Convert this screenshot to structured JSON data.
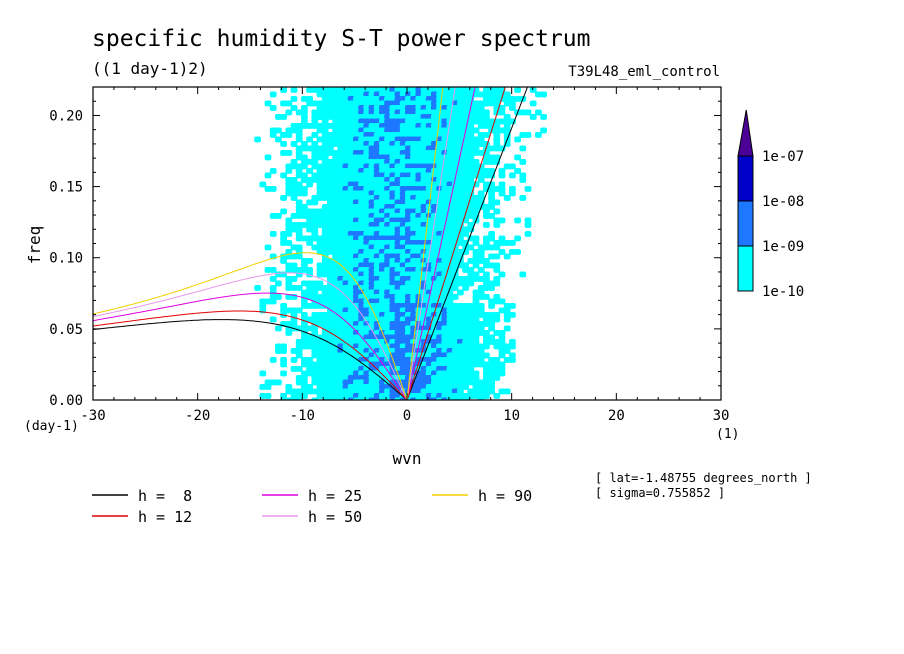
{
  "chart_data": {
    "type": "heatmap",
    "title": "specific humidity S-T power spectrum",
    "subtitle": "((1 day-1)2)",
    "run_label": "T39L48_eml_control",
    "xlabel": "wvn",
    "ylabel": "freq",
    "x_unit": "(1)",
    "y_unit": "(day-1)",
    "xlim": [
      -30,
      30
    ],
    "ylim": [
      0,
      0.22
    ],
    "x_ticks": [
      -30,
      -20,
      -10,
      0,
      10,
      20,
      30
    ],
    "y_ticks": [
      0.0,
      0.05,
      0.1,
      0.15,
      0.2
    ],
    "x_tick_labels": [
      "-30",
      "-20",
      "-10",
      "0",
      "10",
      "20",
      "30"
    ],
    "y_tick_labels": [
      "0.00",
      "0.05",
      "0.10",
      "0.15",
      "0.20"
    ],
    "colorbar": {
      "levels": [
        "1e-10",
        "1e-09",
        "1e-08",
        "1e-07"
      ],
      "colors": [
        "#00ffff",
        "#1e78ff",
        "#0000c8",
        "#4b0096"
      ]
    },
    "dispersion_curves": [
      {
        "label": "h =  8",
        "h": 8,
        "color": "#000000"
      },
      {
        "label": "h = 12",
        "h": 12,
        "color": "#e00000"
      },
      {
        "label": "h = 25",
        "h": 25,
        "color": "#e000e0"
      },
      {
        "label": "h = 50",
        "h": 50,
        "color": "#e898e8"
      },
      {
        "label": "h = 90",
        "h": 90,
        "color": "#f0d000"
      }
    ],
    "annotations": [
      "[ lat=-1.48755 degrees_north ]",
      "[ sigma=0.755852 ]"
    ]
  }
}
